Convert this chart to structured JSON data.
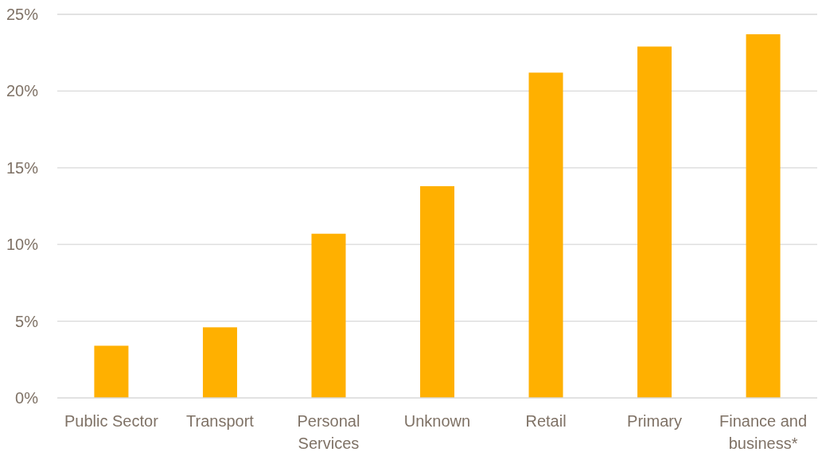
{
  "chart_data": {
    "type": "bar",
    "categories": [
      "Public Sector",
      "Transport",
      "Personal Services",
      "Unknown",
      "Retail",
      "Primary",
      "Finance and business*"
    ],
    "values": [
      3.4,
      4.6,
      10.7,
      13.8,
      21.2,
      22.9,
      23.7
    ],
    "color": "#ffb000",
    "ylim": [
      0,
      25
    ],
    "yticks": [
      {
        "value": 0,
        "label": "0%"
      },
      {
        "value": 5,
        "label": "5%"
      },
      {
        "value": 10,
        "label": "10%"
      },
      {
        "value": 15,
        "label": "15%"
      },
      {
        "value": 20,
        "label": "20%"
      },
      {
        "value": 25,
        "label": "25%"
      }
    ],
    "grid": "y"
  }
}
